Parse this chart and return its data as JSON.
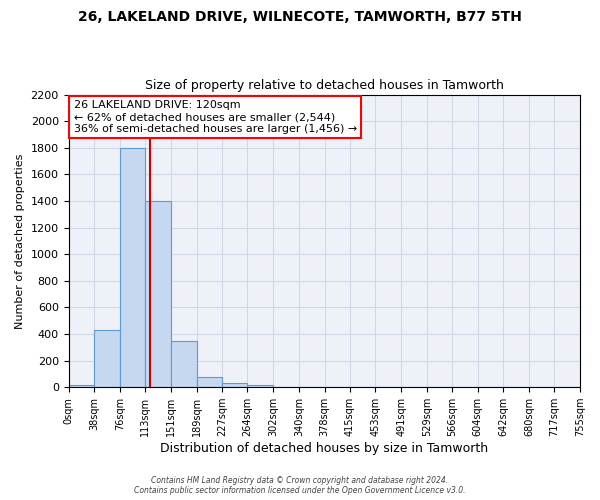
{
  "title": "26, LAKELAND DRIVE, WILNECOTE, TAMWORTH, B77 5TH",
  "subtitle": "Size of property relative to detached houses in Tamworth",
  "xlabel": "Distribution of detached houses by size in Tamworth",
  "ylabel": "Number of detached properties",
  "bin_edges": [
    0,
    38,
    76,
    113,
    151,
    189,
    227,
    264,
    302,
    340,
    378,
    415,
    453,
    491,
    529,
    566,
    604,
    642,
    680,
    717,
    755
  ],
  "bar_heights": [
    20,
    430,
    1800,
    1400,
    350,
    80,
    30,
    15,
    0,
    0,
    0,
    0,
    0,
    0,
    0,
    0,
    0,
    0,
    0,
    0
  ],
  "bar_color": "#c5d8f0",
  "bar_edge_color": "#5b9bd5",
  "bar_edge_width": 0.8,
  "property_line_x": 120,
  "property_line_color": "#cc0000",
  "ylim": [
    0,
    2200
  ],
  "yticks": [
    0,
    200,
    400,
    600,
    800,
    1000,
    1200,
    1400,
    1600,
    1800,
    2000,
    2200
  ],
  "grid_color": "#d0d8e8",
  "background_color": "#eef2f8",
  "annotation_line1": "26 LAKELAND DRIVE: 120sqm",
  "annotation_line2": "← 62% of detached houses are smaller (2,544)",
  "annotation_line3": "36% of semi-detached houses are larger (1,456) →",
  "footer_line1": "Contains HM Land Registry data © Crown copyright and database right 2024.",
  "footer_line2": "Contains public sector information licensed under the Open Government Licence v3.0.",
  "tick_labels": [
    "0sqm",
    "38sqm",
    "76sqm",
    "113sqm",
    "151sqm",
    "189sqm",
    "227sqm",
    "264sqm",
    "302sqm",
    "340sqm",
    "378sqm",
    "415sqm",
    "453sqm",
    "491sqm",
    "529sqm",
    "566sqm",
    "604sqm",
    "642sqm",
    "680sqm",
    "717sqm",
    "755sqm"
  ]
}
